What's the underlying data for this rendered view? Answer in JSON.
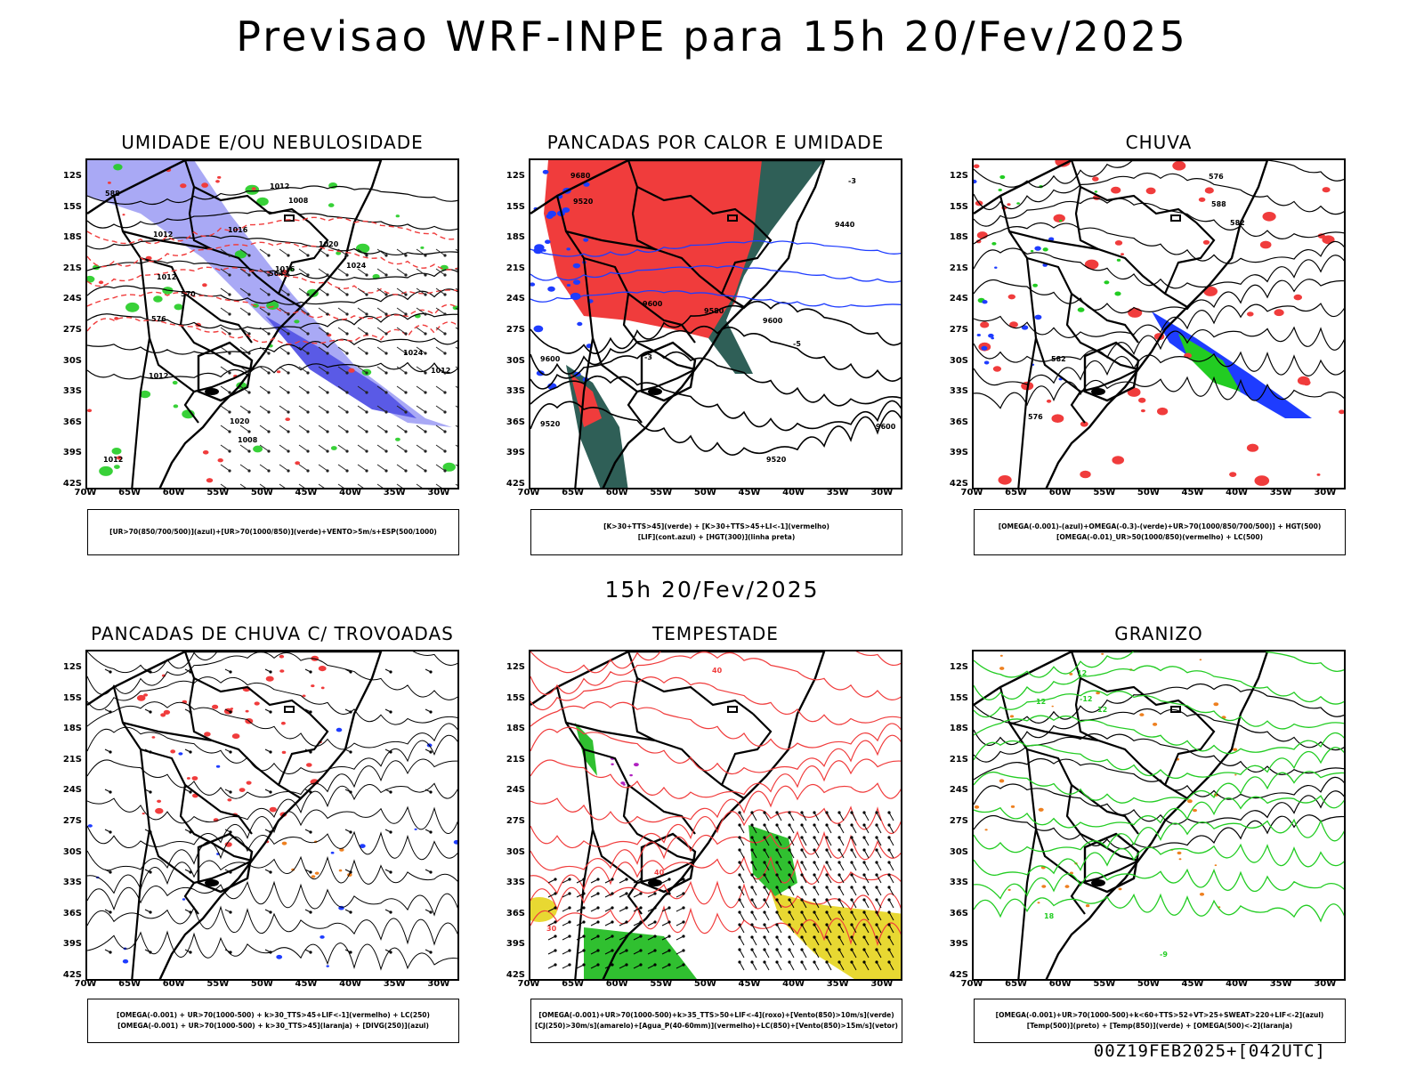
{
  "title": "Previsao WRF-INPE  para 15h 20/Fev/2025",
  "mid_title": "15h 20/Fev/2025",
  "footer": "00Z19FEB2025+[042UTC]",
  "lat_labels": [
    "12S",
    "15S",
    "18S",
    "21S",
    "24S",
    "27S",
    "30S",
    "33S",
    "36S",
    "39S",
    "42S"
  ],
  "lon_labels": [
    "70W",
    "65W",
    "60W",
    "55W",
    "50W",
    "45W",
    "40W",
    "35W",
    "30W"
  ],
  "panels": [
    {
      "title": "UMIDADE E/OU NEBULOSIDADE",
      "legend": [
        "[UR>70(850/700/500)](azul)+[UR>70(1000/850)](verde)+VENTO>5m/s+ESP(500/1000)"
      ],
      "labels": [
        "1012",
        "1012",
        "1012",
        "1016",
        "1012",
        "1012",
        "1016",
        "1020",
        "1024",
        "1024",
        "1020",
        "1012",
        "1008",
        "1008",
        "576",
        "570",
        "564",
        "588"
      ]
    },
    {
      "title": "PANCADAS POR CALOR E UMIDADE",
      "legend": [
        "[K>30+TTS>45](verde) + [K>30+TTS>45+LI<-1](vermelho)",
        "[LIF](cont.azul) + [HGT(300)](linha preta)"
      ],
      "labels": [
        "9600",
        "9680",
        "9580",
        "9600",
        "9520",
        "9600",
        "9520",
        "9440",
        "9520",
        "9600",
        "-5",
        "-3",
        "-3"
      ]
    },
    {
      "title": "CHUVA",
      "legend": [
        "[OMEGA(-0.001)-(azul)+OMEGA(-0.3)-(verde)+UR>70(1000/850/700/500)] + HGT(500)",
        "[OMEGA(-0.01)_UR>50(1000/850)(vermelho) + LC(500)"
      ],
      "labels": [
        "588",
        "582",
        "576",
        "576",
        "582"
      ]
    },
    {
      "title": "PANCADAS DE CHUVA C/ TROVOADAS",
      "legend": [
        "[OMEGA(-0.001) + UR>70(1000-500) + k>30_TTS>45+LIF<-1](vermelho) + LC(250)",
        "[OMEGA(-0.001) + UR>70(1000-500) + k>30_TTS>45](laranja) + [DIVG(250)](azul)"
      ],
      "labels": []
    },
    {
      "title": "TEMPESTADE",
      "legend": [
        "[OMEGA(-0.001)+UR>70(1000-500)+k>35_TTS>50+LIF<-4](roxo)+[Vento(850)>10m/s](verde)",
        "[CJ(250)>30m/s](amarelo)+[Agua_P(40-60mm)](vermelho)+LC(850)+[Vento(850)>15m/s](vetor)"
      ],
      "labels": [
        "40",
        "40",
        "30"
      ]
    },
    {
      "title": "GRANIZO",
      "legend": [
        "[OMEGA(-0.001)+UR>70(1000-500)+k<60+TTS>52+VT>25+SWEAT>220+LIF<-2](azul)",
        "[Temp(500)](preto) + [Temp(850)](verde) + [OMEGA(500)<-2](laranja)"
      ],
      "labels": [
        "18",
        "12",
        "12",
        "-9",
        "-12",
        "12"
      ]
    }
  ],
  "colors": {
    "red": "#f03c3c",
    "blue": "#1e3cff",
    "green": "#22cc22",
    "lavender": "#a9a9f5",
    "darkgreen": "#2f5f57",
    "yellow": "#e8d832",
    "orange": "#ee8020",
    "purple": "#b020c0"
  }
}
